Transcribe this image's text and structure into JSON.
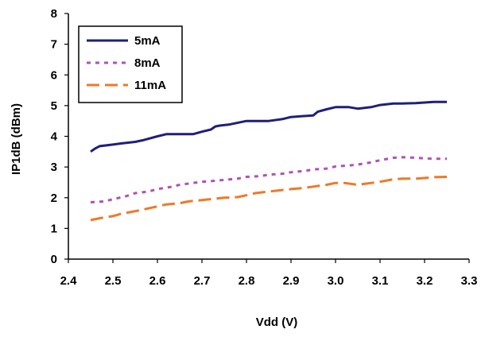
{
  "chart_data": {
    "type": "line",
    "title": "",
    "xlabel": "Vdd (V)",
    "ylabel": "IP1dB (dBm)",
    "xlim": [
      2.4,
      3.3
    ],
    "ylim": [
      0,
      8
    ],
    "xticks": [
      "2.4",
      "2.5",
      "2.6",
      "2.7",
      "2.8",
      "2.9",
      "3.0",
      "3.1",
      "3.2",
      "3.3"
    ],
    "yticks": [
      "0",
      "1",
      "2",
      "3",
      "4",
      "5",
      "6",
      "7",
      "8"
    ],
    "grid": false,
    "legend_position": "top-left",
    "series": [
      {
        "name": "5mA",
        "color": "#1f1f7a",
        "dash": "solid",
        "x": [
          2.45,
          2.46,
          2.47,
          2.5,
          2.52,
          2.55,
          2.57,
          2.6,
          2.62,
          2.65,
          2.68,
          2.7,
          2.72,
          2.73,
          2.74,
          2.76,
          2.8,
          2.83,
          2.85,
          2.88,
          2.9,
          2.93,
          2.95,
          2.96,
          2.98,
          3.0,
          3.03,
          3.05,
          3.08,
          3.1,
          3.13,
          3.15,
          3.18,
          3.2,
          3.22,
          3.25
        ],
        "values": [
          3.5,
          3.6,
          3.68,
          3.73,
          3.77,
          3.82,
          3.88,
          4.0,
          4.07,
          4.07,
          4.07,
          4.15,
          4.22,
          4.32,
          4.35,
          4.38,
          4.5,
          4.5,
          4.5,
          4.56,
          4.63,
          4.66,
          4.68,
          4.8,
          4.88,
          4.95,
          4.95,
          4.9,
          4.95,
          5.02,
          5.07,
          5.07,
          5.08,
          5.1,
          5.12,
          5.12
        ]
      },
      {
        "name": "8mA",
        "color": "#b050b8",
        "dash": "dotted",
        "x": [
          2.45,
          2.48,
          2.5,
          2.53,
          2.55,
          2.58,
          2.6,
          2.63,
          2.65,
          2.68,
          2.7,
          2.73,
          2.75,
          2.78,
          2.8,
          2.83,
          2.85,
          2.88,
          2.9,
          2.93,
          2.95,
          2.98,
          3.0,
          3.03,
          3.05,
          3.08,
          3.1,
          3.13,
          3.15,
          3.18,
          3.2,
          3.22,
          3.25
        ],
        "values": [
          1.85,
          1.88,
          1.95,
          2.05,
          2.15,
          2.2,
          2.28,
          2.35,
          2.42,
          2.48,
          2.52,
          2.55,
          2.58,
          2.62,
          2.68,
          2.7,
          2.75,
          2.78,
          2.83,
          2.87,
          2.92,
          2.95,
          3.02,
          3.05,
          3.08,
          3.15,
          3.22,
          3.3,
          3.32,
          3.3,
          3.28,
          3.27,
          3.27
        ]
      },
      {
        "name": "11mA",
        "color": "#f07828",
        "dash": "dashed",
        "x": [
          2.45,
          2.47,
          2.5,
          2.52,
          2.55,
          2.57,
          2.6,
          2.62,
          2.65,
          2.67,
          2.7,
          2.73,
          2.75,
          2.78,
          2.8,
          2.82,
          2.85,
          2.88,
          2.9,
          2.93,
          2.95,
          2.98,
          3.0,
          3.02,
          3.05,
          3.08,
          3.1,
          3.13,
          3.15,
          3.18,
          3.2,
          3.22,
          3.25
        ],
        "values": [
          1.27,
          1.33,
          1.4,
          1.48,
          1.56,
          1.62,
          1.72,
          1.78,
          1.82,
          1.88,
          1.92,
          1.97,
          2.0,
          2.02,
          2.08,
          2.15,
          2.2,
          2.25,
          2.28,
          2.32,
          2.36,
          2.42,
          2.48,
          2.48,
          2.42,
          2.48,
          2.52,
          2.6,
          2.62,
          2.62,
          2.64,
          2.67,
          2.68
        ]
      }
    ]
  }
}
